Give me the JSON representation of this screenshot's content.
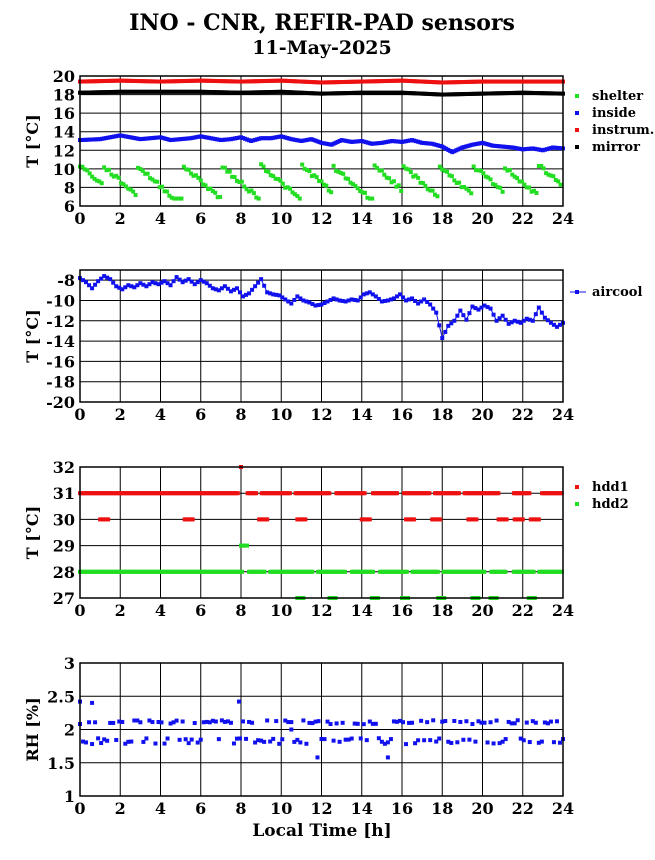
{
  "title": "INO - CNR, REFIR-PAD sensors",
  "subtitle": "11-May-2025",
  "xlabel": "Local Time [h]",
  "chart_data": [
    {
      "type": "scatter",
      "ylabel": "T [°C]",
      "xlim": [
        0,
        24
      ],
      "ylim": [
        6,
        20
      ],
      "xticks": [
        0,
        2,
        4,
        6,
        8,
        10,
        12,
        14,
        16,
        18,
        20,
        22,
        24
      ],
      "yticks": [
        6,
        8,
        10,
        12,
        14,
        16,
        18,
        20
      ],
      "grid": true,
      "legend": "right",
      "series": [
        {
          "name": "shelter",
          "color": "#22dd22",
          "pattern": "shelter"
        },
        {
          "name": "inside",
          "color": "#1111ee",
          "x": [
            0,
            1,
            1.5,
            2,
            2.5,
            3,
            3.5,
            4,
            4.5,
            5,
            5.5,
            6,
            6.5,
            7,
            7.5,
            8,
            8.5,
            9,
            9.5,
            10,
            10.5,
            11,
            11.5,
            12,
            12.5,
            13,
            13.5,
            14,
            14.5,
            15,
            15.5,
            16,
            16.5,
            17,
            17.5,
            18,
            18.5,
            19,
            19.5,
            20,
            20.5,
            21,
            21.5,
            22,
            22.5,
            23,
            23.5,
            24
          ],
          "values": [
            13.1,
            13.2,
            13.4,
            13.6,
            13.4,
            13.2,
            13.3,
            13.4,
            13.1,
            13.2,
            13.3,
            13.5,
            13.3,
            13.1,
            13.2,
            13.4,
            13.0,
            13.3,
            13.3,
            13.5,
            13.2,
            13.0,
            13.2,
            12.8,
            12.6,
            13.1,
            12.9,
            13.0,
            12.7,
            12.8,
            13.0,
            12.9,
            13.1,
            12.8,
            12.7,
            12.4,
            11.8,
            12.3,
            12.6,
            12.8,
            12.5,
            12.4,
            12.3,
            12.1,
            12.2,
            12.0,
            12.3,
            12.2
          ]
        },
        {
          "name": "instrum.",
          "color": "#ee1111",
          "x": [
            0,
            2,
            4,
            6,
            8,
            10,
            12,
            14,
            16,
            18,
            20,
            22,
            24
          ],
          "values": [
            19.4,
            19.5,
            19.4,
            19.5,
            19.4,
            19.5,
            19.3,
            19.4,
            19.5,
            19.3,
            19.4,
            19.4,
            19.4
          ]
        },
        {
          "name": "mirror",
          "color": "#000000",
          "x": [
            0,
            2,
            4,
            6,
            8,
            10,
            12,
            14,
            16,
            18,
            20,
            22,
            24
          ],
          "values": [
            18.2,
            18.3,
            18.3,
            18.3,
            18.2,
            18.3,
            18.1,
            18.2,
            18.2,
            18.0,
            18.1,
            18.2,
            18.1
          ]
        }
      ]
    },
    {
      "type": "line",
      "ylabel": "T [°C]",
      "xlim": [
        0,
        24
      ],
      "ylim": [
        -20,
        -7
      ],
      "xticks": [
        0,
        2,
        4,
        6,
        8,
        10,
        12,
        14,
        16,
        18,
        20,
        22,
        24
      ],
      "yticks": [
        -8,
        -10,
        -12,
        -14,
        -16,
        -18,
        -20
      ],
      "grid": true,
      "legend": "right",
      "series": [
        {
          "name": "aircool",
          "color": "#1111ee",
          "x": [
            0,
            0.3,
            0.6,
            0.9,
            1.2,
            1.5,
            1.8,
            2.1,
            2.4,
            2.7,
            3.0,
            3.3,
            3.6,
            3.9,
            4.2,
            4.5,
            4.8,
            5.1,
            5.4,
            5.7,
            6.0,
            6.3,
            6.6,
            6.9,
            7.2,
            7.5,
            7.8,
            8.1,
            8.4,
            8.7,
            9.0,
            9.3,
            9.6,
            9.9,
            10.2,
            10.5,
            10.8,
            11.1,
            11.4,
            11.7,
            12.0,
            12.3,
            12.6,
            12.9,
            13.2,
            13.5,
            13.8,
            14.1,
            14.4,
            14.7,
            15.0,
            15.3,
            15.6,
            15.9,
            16.2,
            16.5,
            16.8,
            17.1,
            17.4,
            17.7,
            18.0,
            18.3,
            18.6,
            18.9,
            19.2,
            19.5,
            19.8,
            20.1,
            20.4,
            20.7,
            21.0,
            21.3,
            21.6,
            21.9,
            22.2,
            22.5,
            22.8,
            23.1,
            23.4,
            23.7,
            24.0
          ],
          "values": [
            -7.8,
            -8.2,
            -8.8,
            -8.1,
            -7.6,
            -7.9,
            -8.6,
            -8.9,
            -8.5,
            -8.7,
            -8.3,
            -8.6,
            -8.2,
            -8.4,
            -8.1,
            -8.5,
            -7.7,
            -8.2,
            -7.9,
            -8.4,
            -8.0,
            -8.3,
            -8.8,
            -9.0,
            -8.6,
            -9.1,
            -8.8,
            -9.6,
            -9.3,
            -8.6,
            -7.9,
            -9.2,
            -9.4,
            -9.5,
            -9.9,
            -10.3,
            -9.6,
            -10.0,
            -10.2,
            -10.5,
            -10.4,
            -10.1,
            -9.8,
            -10.0,
            -10.1,
            -9.9,
            -10.0,
            -9.4,
            -9.2,
            -9.6,
            -10.1,
            -10.0,
            -9.8,
            -9.4,
            -10.0,
            -9.8,
            -10.3,
            -9.9,
            -10.4,
            -11.2,
            -13.7,
            -12.5,
            -12.0,
            -11.0,
            -11.9,
            -10.6,
            -10.9,
            -10.5,
            -10.8,
            -12.0,
            -11.5,
            -12.3,
            -12.0,
            -12.2,
            -11.8,
            -12.0,
            -10.7,
            -11.7,
            -12.2,
            -12.6,
            -12.2
          ]
        }
      ]
    },
    {
      "type": "scatter",
      "ylabel": "T [°C]",
      "xlim": [
        0,
        24
      ],
      "ylim": [
        27,
        32
      ],
      "xticks": [
        0,
        2,
        4,
        6,
        8,
        10,
        12,
        14,
        16,
        18,
        20,
        22,
        24
      ],
      "yticks": [
        27,
        28,
        29,
        30,
        31,
        32
      ],
      "grid": true,
      "legend": "right",
      "series": [
        {
          "name": "hdd1",
          "color": "#ee1111",
          "pattern": "hdd1"
        },
        {
          "name": "hdd2",
          "color": "#22dd22",
          "pattern": "hdd2"
        }
      ]
    },
    {
      "type": "scatter",
      "ylabel": "RH [%]",
      "xlim": [
        0,
        24
      ],
      "ylim": [
        1,
        3
      ],
      "xticks": [
        0,
        2,
        4,
        6,
        8,
        10,
        12,
        14,
        16,
        18,
        20,
        22,
        24
      ],
      "yticks": [
        1,
        1.5,
        2,
        2.5,
        3
      ],
      "grid": true,
      "legend": "none",
      "series": [
        {
          "name": "",
          "color": "#1111ee",
          "pattern": "rh"
        }
      ]
    }
  ]
}
